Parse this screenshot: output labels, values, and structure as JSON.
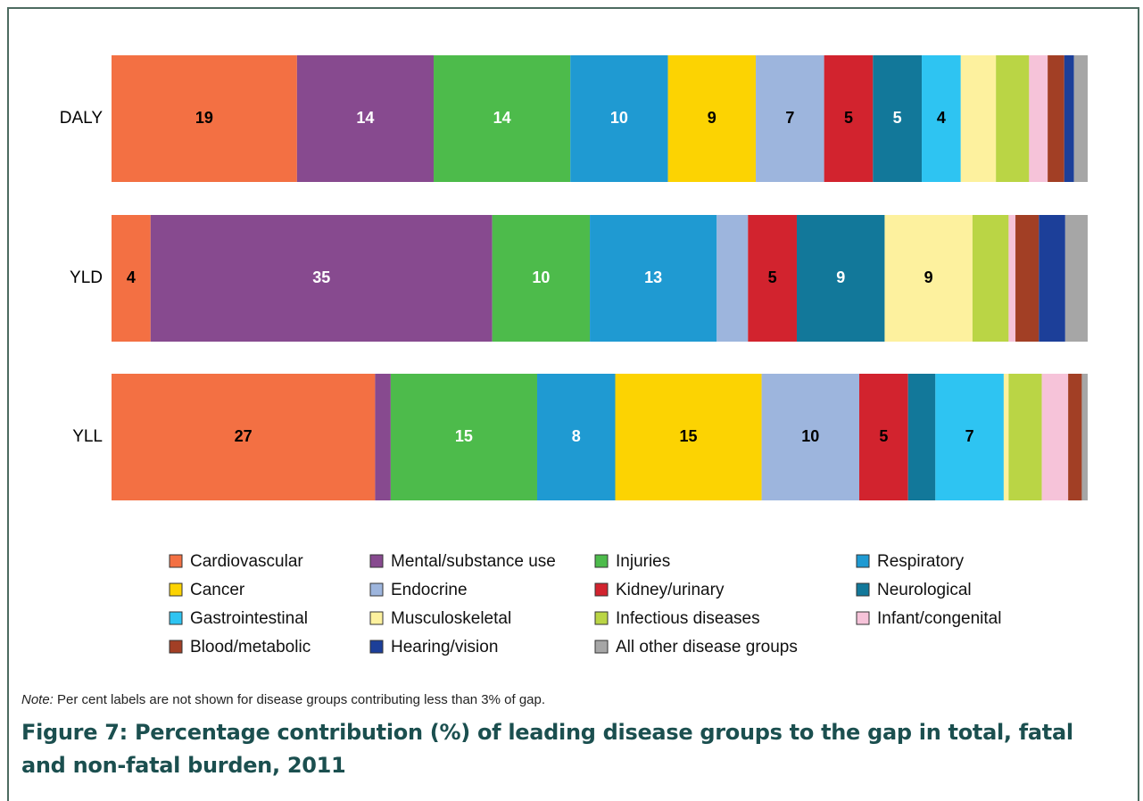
{
  "chart_data": {
    "type": "stacked_barh",
    "categories": [
      "DALY",
      "YLD",
      "YLL"
    ],
    "xlim": [
      0,
      100
    ],
    "series": [
      {
        "name": "Cardiovascular",
        "color": "#f37043",
        "label_color": "#000000",
        "values": [
          19,
          4,
          27
        ],
        "value_labels": [
          "19",
          "4",
          "27"
        ]
      },
      {
        "name": "Mental/substance use",
        "color": "#874a8f",
        "label_color": "#ffffff",
        "values": [
          14,
          35,
          1.6
        ],
        "value_labels": [
          "14",
          "35",
          null
        ]
      },
      {
        "name": "Injuries",
        "color": "#4dbb4b",
        "label_color": "#ffffff",
        "values": [
          14,
          10,
          15
        ],
        "value_labels": [
          "14",
          "10",
          "15"
        ]
      },
      {
        "name": "Respiratory",
        "color": "#1f9ad2",
        "label_color": "#ffffff",
        "values": [
          10,
          13,
          8
        ],
        "value_labels": [
          "10",
          "13",
          "8"
        ]
      },
      {
        "name": "Cancer",
        "color": "#fcd302",
        "label_color": "#000000",
        "values": [
          9,
          0,
          15
        ],
        "value_labels": [
          "9",
          null,
          "15"
        ]
      },
      {
        "name": "Endocrine",
        "color": "#9db5dd",
        "label_color": "#000000",
        "values": [
          7,
          3.2,
          10
        ],
        "value_labels": [
          "7",
          null,
          "10"
        ]
      },
      {
        "name": "Kidney/urinary",
        "color": "#d2232e",
        "label_color": "#000000",
        "values": [
          5,
          5,
          5
        ],
        "value_labels": [
          "5",
          "5",
          "5"
        ]
      },
      {
        "name": "Neurological",
        "color": "#12789a",
        "label_color": "#ffffff",
        "values": [
          5,
          9,
          2.8
        ],
        "value_labels": [
          "5",
          "9",
          null
        ]
      },
      {
        "name": "Gastrointestinal",
        "color": "#2ec4f2",
        "label_color": "#000000",
        "values": [
          4,
          0,
          7
        ],
        "value_labels": [
          "4",
          null,
          "7"
        ]
      },
      {
        "name": "Musculoskeletal",
        "color": "#fdf19e",
        "label_color": "#000000",
        "values": [
          3.6,
          9,
          0.5
        ],
        "value_labels": [
          null,
          "9",
          null
        ]
      },
      {
        "name": "Infectious diseases",
        "color": "#bad545",
        "label_color": "#000000",
        "values": [
          3.4,
          3.7,
          3.4
        ],
        "value_labels": [
          null,
          null,
          null
        ]
      },
      {
        "name": "Infant/congenital",
        "color": "#f6c3d9",
        "label_color": "#000000",
        "values": [
          1.9,
          0.7,
          2.7
        ],
        "value_labels": [
          null,
          null,
          null
        ]
      },
      {
        "name": "Blood/metabolic",
        "color": "#a23f25",
        "label_color": "#ffffff",
        "values": [
          1.7,
          2.4,
          1.4
        ],
        "value_labels": [
          null,
          null,
          null
        ]
      },
      {
        "name": "Hearing/vision",
        "color": "#1c3f99",
        "label_color": "#ffffff",
        "values": [
          1.0,
          2.7,
          0
        ],
        "value_labels": [
          null,
          null,
          null
        ]
      },
      {
        "name": "All other disease groups",
        "color": "#a6a6a6",
        "label_color": "#000000",
        "values": [
          1.4,
          2.3,
          0.6
        ],
        "value_labels": [
          null,
          null,
          null
        ]
      }
    ],
    "note": {
      "label": "Note:",
      "text": "Per cent labels are not shown for disease groups contributing less than 3% of gap."
    },
    "caption": "Figure 7: Percentage contribution (%) of leading disease groups to the gap in total, fatal and non-fatal burden, 2011"
  }
}
